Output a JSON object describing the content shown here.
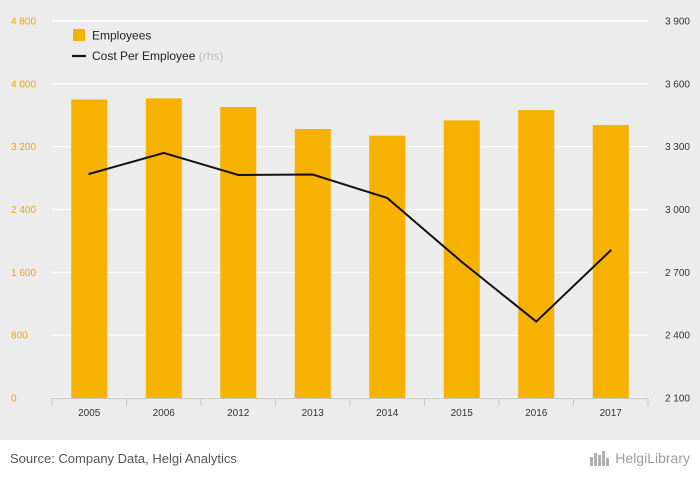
{
  "chart_data": {
    "type": "bar+line",
    "categories": [
      "2005",
      "2006",
      "2012",
      "2013",
      "2014",
      "2015",
      "2016",
      "2017"
    ],
    "series": [
      {
        "name": "Employees",
        "type": "bar",
        "axis": "left",
        "color": "#f7b100",
        "values": [
          3800,
          3815,
          3705,
          3425,
          3340,
          3535,
          3665,
          3475
        ]
      },
      {
        "name": "Cost Per Employee",
        "name_suffix": "(rhs)",
        "type": "line",
        "axis": "right",
        "color": "#111111",
        "values": [
          3170,
          3270,
          3165,
          3167,
          3055,
          2750,
          2465,
          2805
        ]
      }
    ],
    "y_left": {
      "min": 0,
      "max": 4800,
      "ticks": [
        "0",
        "800",
        "1 600",
        "2 400",
        "3 200",
        "4 000",
        "4 800"
      ]
    },
    "y_right": {
      "min": 2100,
      "max": 3900,
      "ticks": [
        "2 100",
        "2 400",
        "2 700",
        "3 000",
        "3 300",
        "3 600",
        "3 900"
      ]
    },
    "grid": true,
    "legend_position": "top-left"
  },
  "footer": {
    "source": "Source: Company Data, Helgi Analytics",
    "brand": "HelgiLibrary",
    "brand_icon": "helgi-library-logo-icon"
  }
}
